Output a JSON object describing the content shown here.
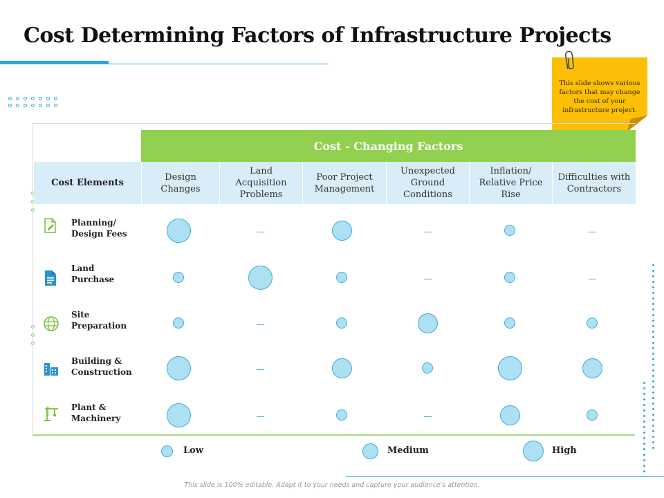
{
  "title": "Cost Determining Factors of Infrastructure Projects",
  "note": {
    "text": "This slide shows various factors that may change the cost of your infrastructure project."
  },
  "table": {
    "group_header": "Cost - Changing Factors",
    "row_header": "Cost Elements",
    "columns": [
      "Design Changes",
      "Land Acquisition Problems",
      "Poor Project Management",
      "Unexpected Ground Conditions",
      "Inflation/ Relative Price Rise",
      "Difficulties with Contractors"
    ],
    "rows": [
      {
        "label_line1": "Planning/",
        "label_line2": "Design Fees",
        "icon": "document-edit-icon",
        "ratings": [
          "high",
          "none",
          "medium",
          "none",
          "low",
          "none"
        ]
      },
      {
        "label_line1": "Land",
        "label_line2": "Purchase",
        "icon": "document-list-icon",
        "ratings": [
          "low",
          "high",
          "low",
          "none",
          "low",
          "none"
        ]
      },
      {
        "label_line1": "Site",
        "label_line2": "Preparation",
        "icon": "globe-icon",
        "ratings": [
          "low",
          "none",
          "low",
          "medium",
          "low",
          "low"
        ]
      },
      {
        "label_line1": "Building &",
        "label_line2": "Construction",
        "icon": "building-icon",
        "ratings": [
          "high",
          "none",
          "medium",
          "low",
          "high",
          "medium"
        ]
      },
      {
        "label_line1": "Plant &",
        "label_line2": "Machinery",
        "icon": "crane-icon",
        "ratings": [
          "high",
          "none",
          "low",
          "none",
          "medium",
          "low"
        ]
      }
    ]
  },
  "legend": {
    "low": "Low",
    "medium": "Medium",
    "high": "High"
  },
  "footer": "This slide is 100% editable. Adapt it to your needs and capture your audience's attention.",
  "colors": {
    "accent": "#2aa7dc",
    "green": "#92d050",
    "header_bg": "#d8edf8",
    "bubble_fill": "#aee0f4",
    "note": "#fbbf07"
  }
}
